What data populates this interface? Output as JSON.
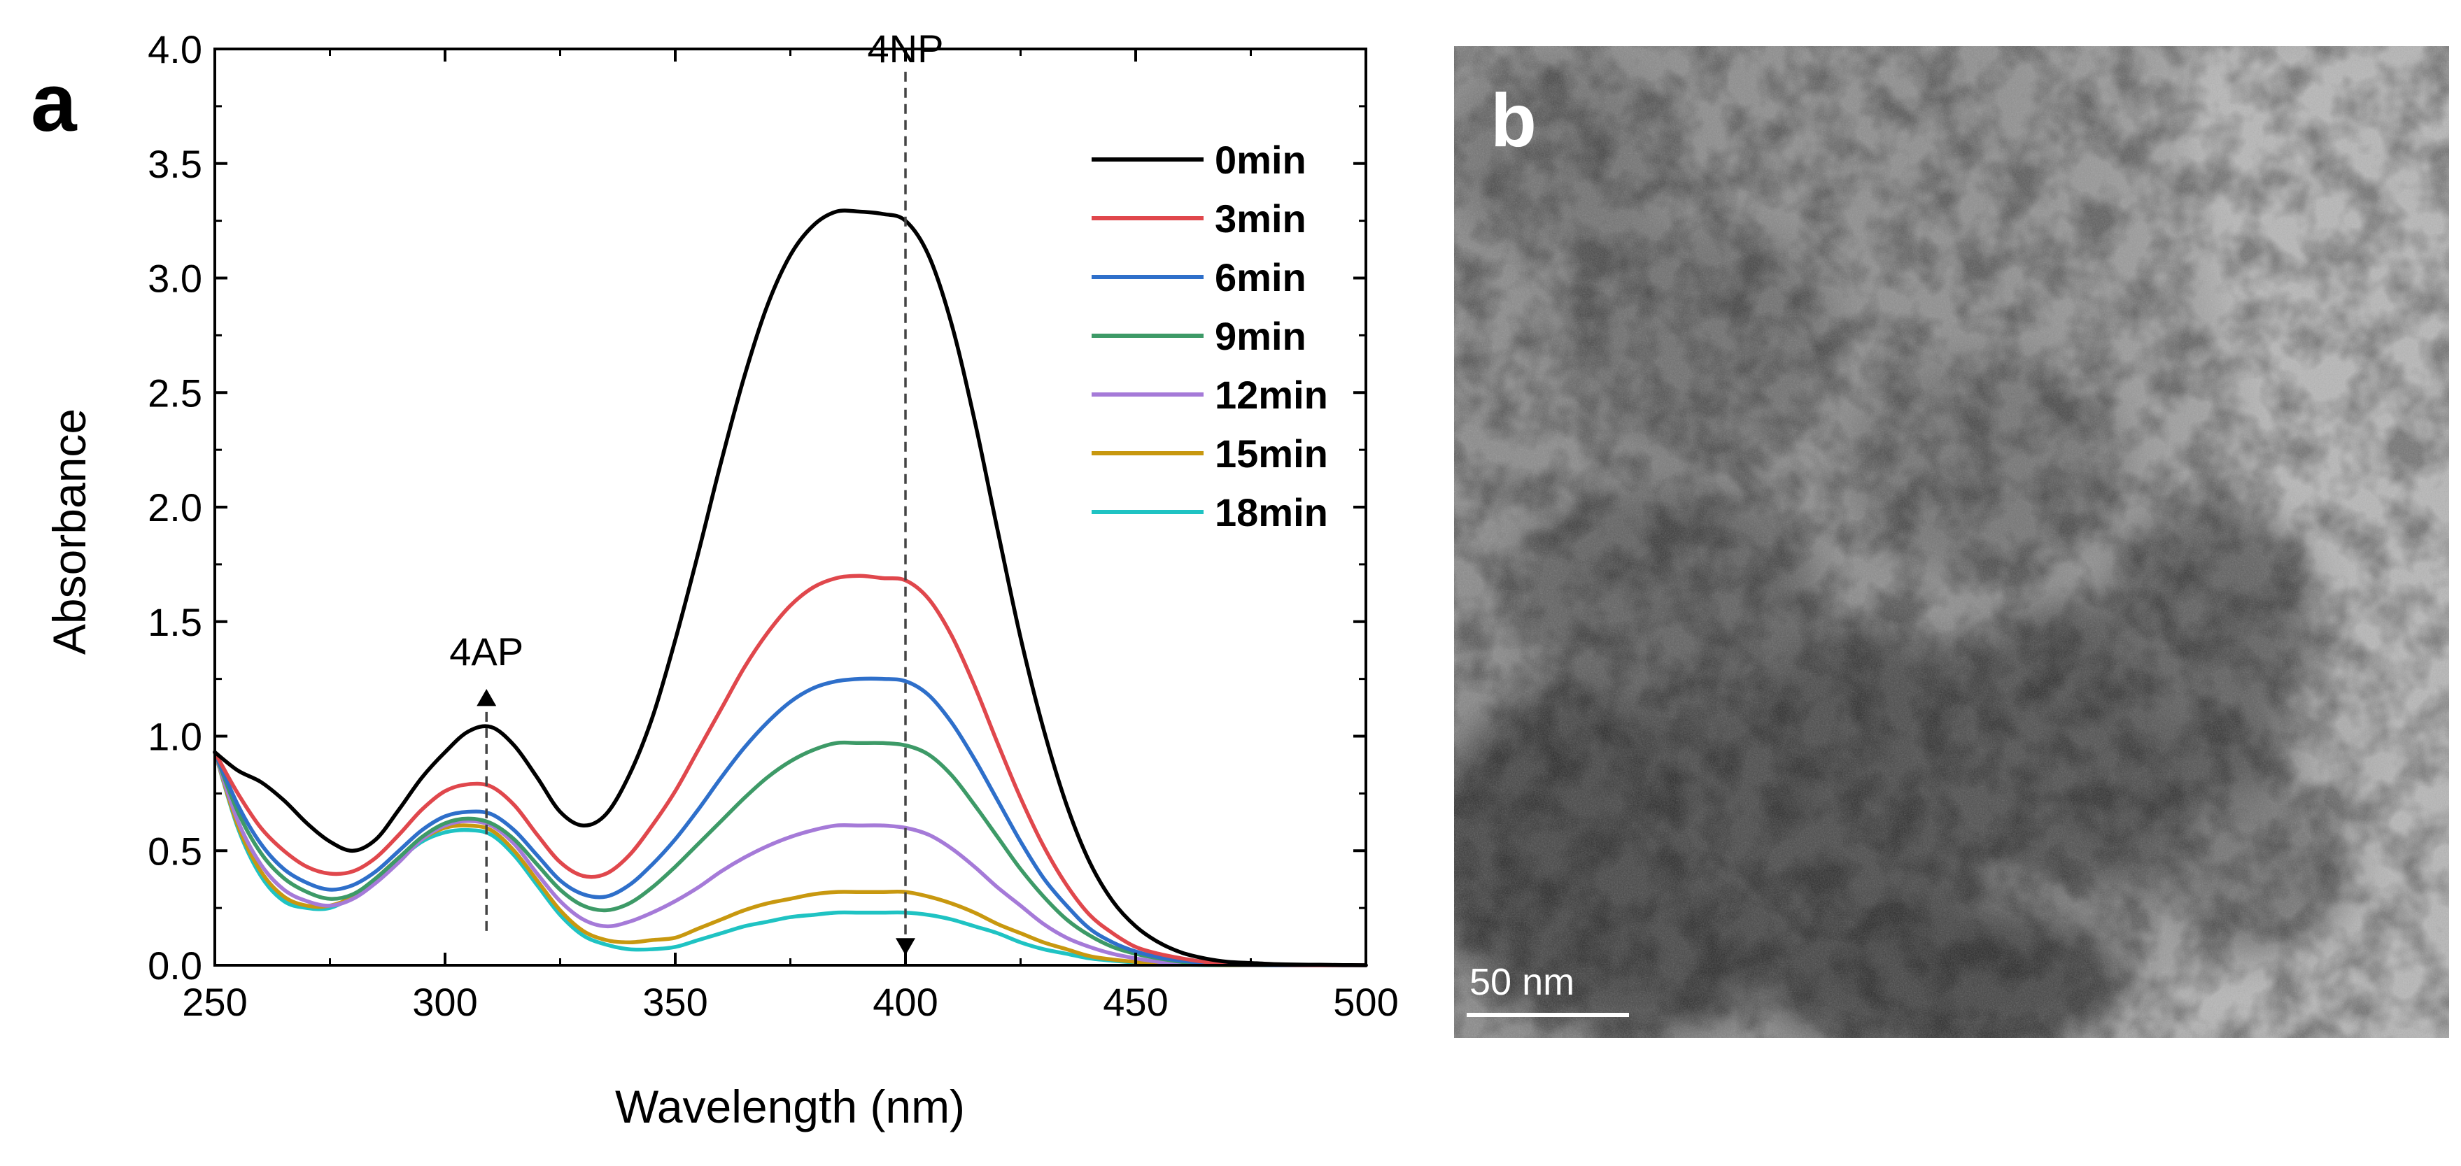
{
  "panel_a": {
    "letter": "a"
  },
  "panel_b": {
    "letter": "b",
    "scale_bar_label": "50 nm"
  },
  "colors": {
    "axis": "#000000",
    "series": [
      "#000000",
      "#e0474c",
      "#2e6fca",
      "#3d9a67",
      "#a57ad8",
      "#c8980f",
      "#1fc3c3"
    ]
  },
  "chart_data": {
    "type": "line",
    "title": "",
    "xlabel": "Wavelength (nm)",
    "ylabel": "Absorbance",
    "xlim": [
      250,
      500
    ],
    "ylim": [
      0,
      4.0
    ],
    "xticks": [
      250,
      300,
      350,
      400,
      450,
      500
    ],
    "xtick_labels": [
      "250",
      "300",
      "350",
      "400",
      "450",
      "500"
    ],
    "yticks": [
      0,
      0.5,
      1.0,
      1.5,
      2.0,
      2.5,
      3.0,
      3.5,
      4.0
    ],
    "ytick_labels": [
      "0.0",
      "0.5",
      "1.0",
      "1.5",
      "2.0",
      "2.5",
      "3.0",
      "3.5",
      "4.0"
    ],
    "legend_position": "top-right",
    "annotations": [
      {
        "text": "4NP",
        "x": 400,
        "arrow": "down",
        "y_from": 3.9,
        "y_to": 0.05
      },
      {
        "text": "4AP",
        "x": 309,
        "arrow": "up",
        "y_from": 0.15,
        "y_to": 1.2
      }
    ],
    "x": [
      250,
      255,
      260,
      265,
      270,
      275,
      280,
      285,
      290,
      295,
      300,
      305,
      310,
      315,
      320,
      325,
      330,
      335,
      340,
      345,
      350,
      355,
      360,
      365,
      370,
      375,
      380,
      385,
      390,
      395,
      400,
      405,
      410,
      415,
      420,
      425,
      430,
      435,
      440,
      445,
      450,
      455,
      460,
      465,
      470,
      475,
      480,
      485,
      490,
      495,
      500
    ],
    "series": [
      {
        "name": "0min",
        "values": [
          0.93,
          0.85,
          0.8,
          0.72,
          0.62,
          0.54,
          0.5,
          0.55,
          0.68,
          0.82,
          0.93,
          1.02,
          1.04,
          0.96,
          0.82,
          0.67,
          0.61,
          0.66,
          0.83,
          1.08,
          1.42,
          1.8,
          2.2,
          2.57,
          2.88,
          3.1,
          3.23,
          3.29,
          3.29,
          3.28,
          3.25,
          3.1,
          2.8,
          2.38,
          1.9,
          1.43,
          1.03,
          0.7,
          0.45,
          0.28,
          0.17,
          0.1,
          0.055,
          0.03,
          0.015,
          0.01,
          0.005,
          0.003,
          0.002,
          0.001,
          0.0
        ]
      },
      {
        "name": "3min",
        "values": [
          0.93,
          0.75,
          0.6,
          0.5,
          0.43,
          0.4,
          0.41,
          0.47,
          0.57,
          0.68,
          0.76,
          0.79,
          0.78,
          0.7,
          0.57,
          0.45,
          0.39,
          0.4,
          0.48,
          0.61,
          0.76,
          0.94,
          1.12,
          1.3,
          1.45,
          1.57,
          1.65,
          1.69,
          1.7,
          1.69,
          1.68,
          1.6,
          1.44,
          1.22,
          0.97,
          0.73,
          0.52,
          0.35,
          0.22,
          0.14,
          0.08,
          0.05,
          0.03,
          0.015,
          0.008,
          0.004,
          0.002,
          0.001,
          0.0,
          0.0,
          0.0
        ]
      },
      {
        "name": "6min",
        "values": [
          0.93,
          0.7,
          0.53,
          0.42,
          0.36,
          0.33,
          0.35,
          0.41,
          0.5,
          0.59,
          0.65,
          0.67,
          0.66,
          0.59,
          0.48,
          0.37,
          0.31,
          0.3,
          0.35,
          0.44,
          0.55,
          0.68,
          0.82,
          0.95,
          1.06,
          1.15,
          1.21,
          1.24,
          1.25,
          1.25,
          1.24,
          1.18,
          1.06,
          0.9,
          0.72,
          0.54,
          0.38,
          0.26,
          0.16,
          0.1,
          0.06,
          0.035,
          0.02,
          0.01,
          0.005,
          0.003,
          0.001,
          0.0,
          0.0,
          0.0,
          0.0
        ]
      },
      {
        "name": "9min",
        "values": [
          0.93,
          0.67,
          0.49,
          0.38,
          0.32,
          0.29,
          0.31,
          0.38,
          0.47,
          0.56,
          0.62,
          0.64,
          0.62,
          0.55,
          0.44,
          0.33,
          0.26,
          0.24,
          0.27,
          0.34,
          0.43,
          0.53,
          0.63,
          0.73,
          0.82,
          0.89,
          0.94,
          0.97,
          0.97,
          0.97,
          0.96,
          0.92,
          0.83,
          0.7,
          0.56,
          0.42,
          0.3,
          0.2,
          0.13,
          0.08,
          0.05,
          0.03,
          0.015,
          0.008,
          0.004,
          0.002,
          0.001,
          0.0,
          0.0,
          0.0,
          0.0
        ]
      },
      {
        "name": "12min",
        "values": [
          0.93,
          0.63,
          0.44,
          0.33,
          0.28,
          0.26,
          0.29,
          0.36,
          0.45,
          0.55,
          0.61,
          0.63,
          0.61,
          0.53,
          0.4,
          0.28,
          0.2,
          0.17,
          0.19,
          0.23,
          0.28,
          0.34,
          0.41,
          0.47,
          0.52,
          0.56,
          0.59,
          0.61,
          0.61,
          0.61,
          0.6,
          0.57,
          0.51,
          0.43,
          0.34,
          0.26,
          0.18,
          0.12,
          0.08,
          0.05,
          0.03,
          0.015,
          0.008,
          0.004,
          0.002,
          0.001,
          0.0,
          0.0,
          0.0,
          0.0,
          0.0
        ]
      },
      {
        "name": "15min",
        "values": [
          0.93,
          0.61,
          0.41,
          0.3,
          0.26,
          0.26,
          0.3,
          0.38,
          0.47,
          0.55,
          0.6,
          0.61,
          0.59,
          0.5,
          0.37,
          0.24,
          0.15,
          0.11,
          0.1,
          0.11,
          0.12,
          0.16,
          0.2,
          0.24,
          0.27,
          0.29,
          0.31,
          0.32,
          0.32,
          0.32,
          0.32,
          0.3,
          0.27,
          0.23,
          0.18,
          0.14,
          0.1,
          0.07,
          0.04,
          0.025,
          0.015,
          0.008,
          0.004,
          0.002,
          0.001,
          0.0,
          0.0,
          0.0,
          0.0,
          0.0,
          0.0
        ]
      },
      {
        "name": "18min",
        "values": [
          0.93,
          0.6,
          0.39,
          0.28,
          0.25,
          0.25,
          0.3,
          0.37,
          0.46,
          0.54,
          0.58,
          0.59,
          0.57,
          0.48,
          0.35,
          0.22,
          0.13,
          0.09,
          0.07,
          0.07,
          0.08,
          0.11,
          0.14,
          0.17,
          0.19,
          0.21,
          0.22,
          0.23,
          0.23,
          0.23,
          0.23,
          0.22,
          0.2,
          0.17,
          0.14,
          0.1,
          0.07,
          0.05,
          0.03,
          0.02,
          0.012,
          0.006,
          0.003,
          0.001,
          0.0,
          0.0,
          0.0,
          0.0,
          0.0,
          0.0,
          0.0
        ]
      }
    ]
  }
}
